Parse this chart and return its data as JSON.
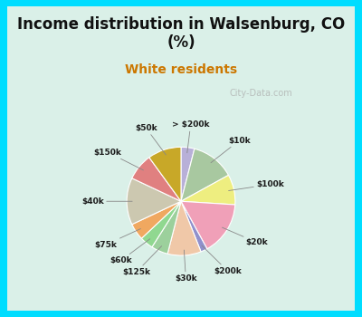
{
  "title": "Income distribution in Walsenburg, CO\n(%)",
  "subtitle": "White residents",
  "title_color": "#111111",
  "subtitle_color": "#cc7700",
  "bg_outer": "#00ddff",
  "bg_inner": "#daf0e8",
  "labels": [
    "> $200k",
    "$10k",
    "$100k",
    "$20k",
    "$200k",
    "$30k",
    "$125k",
    "$60k",
    "$75k",
    "$40k",
    "$150k",
    "$50k"
  ],
  "values": [
    4,
    13,
    9,
    16,
    2,
    10,
    5,
    4,
    5,
    14,
    8,
    10
  ],
  "colors": [
    "#b8b0d8",
    "#a8c8a0",
    "#eeee80",
    "#f0a0b8",
    "#9090cc",
    "#f0c8a8",
    "#9cd09c",
    "#90d890",
    "#f0a860",
    "#ccc8b0",
    "#e08080",
    "#c8a828"
  ],
  "watermark": "City-Data.com",
  "watermark_color": "#aaaaaa"
}
